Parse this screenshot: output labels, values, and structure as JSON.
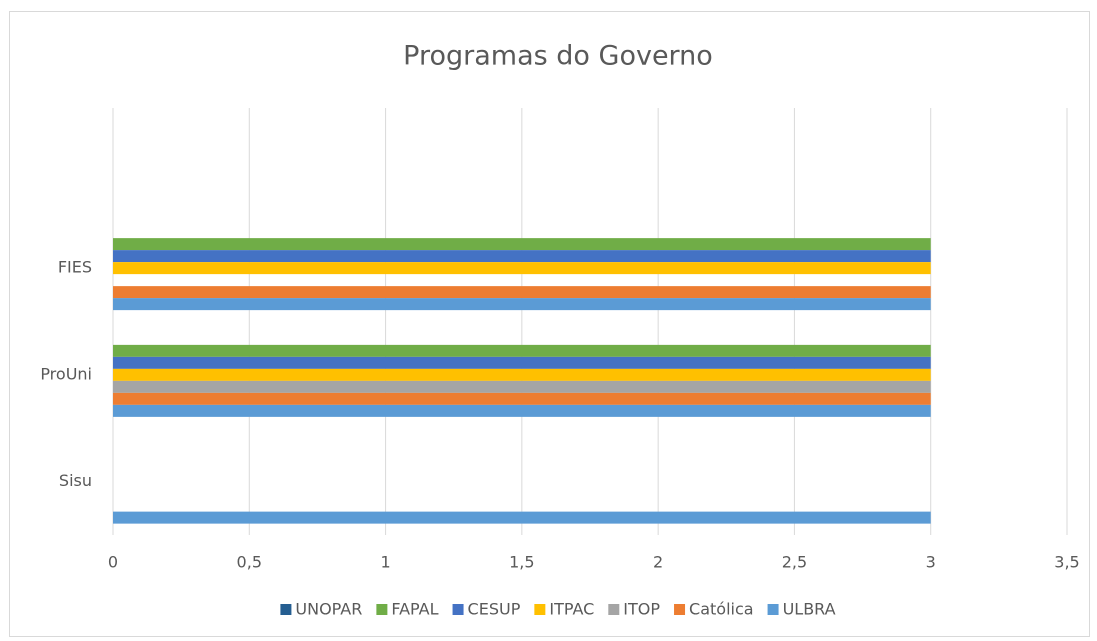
{
  "chart_data": {
    "type": "bar",
    "orientation": "horizontal",
    "title": "Programas do Governo",
    "categories": [
      "Sisu",
      "ProUni",
      "FIES",
      null
    ],
    "series": [
      {
        "name": "UNOPAR",
        "color": "#255e91",
        "values": [
          0,
          0,
          0,
          null
        ]
      },
      {
        "name": "FAPAL",
        "color": "#70ad47",
        "values": [
          0,
          3,
          3,
          null
        ]
      },
      {
        "name": "CESUP",
        "color": "#4472c4",
        "values": [
          0,
          3,
          3,
          null
        ]
      },
      {
        "name": "ITPAC",
        "color": "#ffc000",
        "values": [
          0,
          3,
          3,
          null
        ]
      },
      {
        "name": "ITOP",
        "color": "#a5a5a5",
        "values": [
          0,
          3,
          0,
          null
        ]
      },
      {
        "name": "Católica",
        "color": "#ed7d31",
        "values": [
          0,
          3,
          3,
          null
        ]
      },
      {
        "name": "ULBRA",
        "color": "#5b9bd5",
        "values": [
          3,
          3,
          3,
          null
        ]
      }
    ],
    "xlim": [
      0,
      3.5
    ],
    "xticks": [
      0,
      {
        "value": 0.5,
        "label": "0,5"
      },
      1,
      {
        "value": 1.5,
        "label": "1,5"
      },
      2,
      {
        "value": 2.5,
        "label": "2,5"
      },
      3,
      {
        "value": 3.5,
        "label": "3,5"
      }
    ],
    "grid": true,
    "legend": "bottom"
  }
}
